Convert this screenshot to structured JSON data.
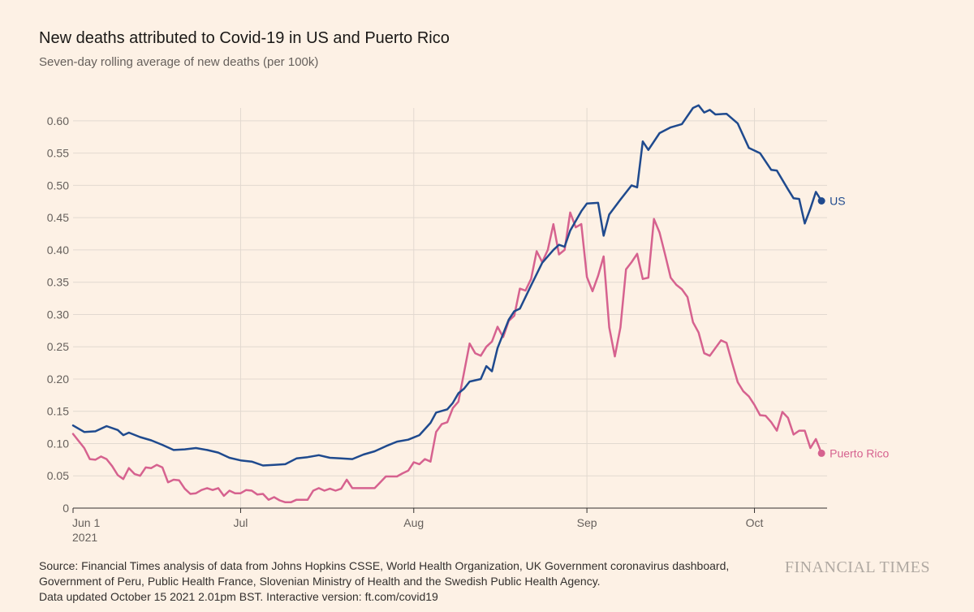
{
  "header": {
    "title": "New deaths attributed to Covid-19 in US and Puerto Rico",
    "subtitle": "Seven-day rolling average of new deaths (per 100k)"
  },
  "footer": {
    "source_lines": [
      "Source: Financial Times analysis of data from Johns Hopkins CSSE, World Health Organization, UK Government coronavirus dashboard,",
      "Government of Peru, Public Health France, Slovenian Ministry of Health and the Swedish Public Health Agency.",
      "Data updated October 15 2021 2.01pm BST. Interactive version: ft.com/covid19"
    ],
    "brand": "FINANCIAL TIMES"
  },
  "colors": {
    "background": "#fdf1e5",
    "us": "#1f4a8e",
    "puerto_rico": "#d6628f",
    "grid": "#e2d9d0",
    "axis": "#33302e"
  },
  "chart_data": {
    "type": "line",
    "title": "New deaths attributed to Covid-19 in US and Puerto Rico",
    "subtitle": "Seven-day rolling average of new deaths (per 100k)",
    "x_start": "2021-06-01",
    "x_end": "2021-10-14",
    "ylim": [
      0,
      0.62
    ],
    "yticks": [
      0,
      0.05,
      0.1,
      0.15,
      0.2,
      0.25,
      0.3,
      0.35,
      0.4,
      0.45,
      0.5,
      0.55,
      0.6
    ],
    "ytick_labels": [
      "0",
      "0.05",
      "0.10",
      "0.15",
      "0.20",
      "0.25",
      "0.30",
      "0.35",
      "0.40",
      "0.45",
      "0.50",
      "0.55",
      "0.60"
    ],
    "xticks": [
      {
        "date": "2021-06-01",
        "label": "Jun 1",
        "sublabel": "2021"
      },
      {
        "date": "2021-07-01",
        "label": "Jul",
        "sublabel": ""
      },
      {
        "date": "2021-08-01",
        "label": "Aug",
        "sublabel": ""
      },
      {
        "date": "2021-09-01",
        "label": "Sep",
        "sublabel": ""
      },
      {
        "date": "2021-10-01",
        "label": "Oct",
        "sublabel": ""
      }
    ],
    "grid": true,
    "legend": "end-of-line labels",
    "series": [
      {
        "name": "US",
        "color": "#1f4a8e",
        "points": [
          [
            "2021-06-01",
            0.128
          ],
          [
            "2021-06-03",
            0.118
          ],
          [
            "2021-06-05",
            0.119
          ],
          [
            "2021-06-07",
            0.127
          ],
          [
            "2021-06-09",
            0.121
          ],
          [
            "2021-06-10",
            0.113
          ],
          [
            "2021-06-11",
            0.117
          ],
          [
            "2021-06-13",
            0.11
          ],
          [
            "2021-06-15",
            0.105
          ],
          [
            "2021-06-17",
            0.098
          ],
          [
            "2021-06-19",
            0.09
          ],
          [
            "2021-06-21",
            0.091
          ],
          [
            "2021-06-23",
            0.093
          ],
          [
            "2021-06-25",
            0.09
          ],
          [
            "2021-06-27",
            0.086
          ],
          [
            "2021-06-29",
            0.078
          ],
          [
            "2021-07-01",
            0.074
          ],
          [
            "2021-07-03",
            0.072
          ],
          [
            "2021-07-05",
            0.066
          ],
          [
            "2021-07-07",
            0.067
          ],
          [
            "2021-07-09",
            0.068
          ],
          [
            "2021-07-11",
            0.077
          ],
          [
            "2021-07-13",
            0.079
          ],
          [
            "2021-07-15",
            0.082
          ],
          [
            "2021-07-17",
            0.078
          ],
          [
            "2021-07-19",
            0.077
          ],
          [
            "2021-07-21",
            0.076
          ],
          [
            "2021-07-23",
            0.083
          ],
          [
            "2021-07-25",
            0.088
          ],
          [
            "2021-07-27",
            0.096
          ],
          [
            "2021-07-29",
            0.103
          ],
          [
            "2021-07-31",
            0.106
          ],
          [
            "2021-08-02",
            0.113
          ],
          [
            "2021-08-04",
            0.132
          ],
          [
            "2021-08-05",
            0.148
          ],
          [
            "2021-08-07",
            0.153
          ],
          [
            "2021-08-08",
            0.163
          ],
          [
            "2021-08-09",
            0.178
          ],
          [
            "2021-08-10",
            0.185
          ],
          [
            "2021-08-11",
            0.196
          ],
          [
            "2021-08-13",
            0.2
          ],
          [
            "2021-08-14",
            0.22
          ],
          [
            "2021-08-15",
            0.212
          ],
          [
            "2021-08-16",
            0.248
          ],
          [
            "2021-08-18",
            0.292
          ],
          [
            "2021-08-19",
            0.305
          ],
          [
            "2021-08-20",
            0.309
          ],
          [
            "2021-08-22",
            0.345
          ],
          [
            "2021-08-24",
            0.38
          ],
          [
            "2021-08-26",
            0.4
          ],
          [
            "2021-08-27",
            0.408
          ],
          [
            "2021-08-28",
            0.405
          ],
          [
            "2021-08-29",
            0.43
          ],
          [
            "2021-08-31",
            0.46
          ],
          [
            "2021-09-01",
            0.472
          ],
          [
            "2021-09-03",
            0.473
          ],
          [
            "2021-09-04",
            0.422
          ],
          [
            "2021-09-05",
            0.455
          ],
          [
            "2021-09-07",
            0.478
          ],
          [
            "2021-09-09",
            0.5
          ],
          [
            "2021-09-10",
            0.497
          ],
          [
            "2021-09-11",
            0.568
          ],
          [
            "2021-09-12",
            0.555
          ],
          [
            "2021-09-14",
            0.581
          ],
          [
            "2021-09-16",
            0.59
          ],
          [
            "2021-09-18",
            0.595
          ],
          [
            "2021-09-20",
            0.62
          ],
          [
            "2021-09-21",
            0.624
          ],
          [
            "2021-09-22",
            0.613
          ],
          [
            "2021-09-23",
            0.617
          ],
          [
            "2021-09-24",
            0.61
          ],
          [
            "2021-09-26",
            0.611
          ],
          [
            "2021-09-28",
            0.596
          ],
          [
            "2021-09-30",
            0.558
          ],
          [
            "2021-10-02",
            0.55
          ],
          [
            "2021-10-04",
            0.524
          ],
          [
            "2021-10-05",
            0.523
          ],
          [
            "2021-10-07",
            0.494
          ],
          [
            "2021-10-08",
            0.48
          ],
          [
            "2021-10-09",
            0.479
          ],
          [
            "2021-10-10",
            0.441
          ],
          [
            "2021-10-11",
            0.464
          ],
          [
            "2021-10-12",
            0.49
          ],
          [
            "2021-10-13",
            0.476
          ]
        ]
      },
      {
        "name": "Puerto Rico",
        "color": "#d6628f",
        "points": [
          [
            "2021-06-01",
            0.115
          ],
          [
            "2021-06-03",
            0.093
          ],
          [
            "2021-06-04",
            0.076
          ],
          [
            "2021-06-05",
            0.075
          ],
          [
            "2021-06-06",
            0.08
          ],
          [
            "2021-06-07",
            0.076
          ],
          [
            "2021-06-08",
            0.065
          ],
          [
            "2021-06-09",
            0.051
          ],
          [
            "2021-06-10",
            0.045
          ],
          [
            "2021-06-11",
            0.062
          ],
          [
            "2021-06-12",
            0.053
          ],
          [
            "2021-06-13",
            0.05
          ],
          [
            "2021-06-14",
            0.063
          ],
          [
            "2021-06-15",
            0.062
          ],
          [
            "2021-06-16",
            0.067
          ],
          [
            "2021-06-17",
            0.063
          ],
          [
            "2021-06-18",
            0.04
          ],
          [
            "2021-06-19",
            0.044
          ],
          [
            "2021-06-20",
            0.043
          ],
          [
            "2021-06-21",
            0.03
          ],
          [
            "2021-06-22",
            0.022
          ],
          [
            "2021-06-23",
            0.023
          ],
          [
            "2021-06-24",
            0.028
          ],
          [
            "2021-06-25",
            0.031
          ],
          [
            "2021-06-26",
            0.028
          ],
          [
            "2021-06-27",
            0.031
          ],
          [
            "2021-06-28",
            0.019
          ],
          [
            "2021-06-29",
            0.027
          ],
          [
            "2021-06-30",
            0.023
          ],
          [
            "2021-07-01",
            0.023
          ],
          [
            "2021-07-02",
            0.028
          ],
          [
            "2021-07-03",
            0.027
          ],
          [
            "2021-07-04",
            0.021
          ],
          [
            "2021-07-05",
            0.022
          ],
          [
            "2021-07-06",
            0.013
          ],
          [
            "2021-07-07",
            0.017
          ],
          [
            "2021-07-08",
            0.012
          ],
          [
            "2021-07-09",
            0.009
          ],
          [
            "2021-07-10",
            0.009
          ],
          [
            "2021-07-11",
            0.013
          ],
          [
            "2021-07-13",
            0.013
          ],
          [
            "2021-07-14",
            0.027
          ],
          [
            "2021-07-15",
            0.031
          ],
          [
            "2021-07-16",
            0.027
          ],
          [
            "2021-07-17",
            0.03
          ],
          [
            "2021-07-18",
            0.027
          ],
          [
            "2021-07-19",
            0.03
          ],
          [
            "2021-07-20",
            0.044
          ],
          [
            "2021-07-21",
            0.031
          ],
          [
            "2021-07-23",
            0.031
          ],
          [
            "2021-07-25",
            0.031
          ],
          [
            "2021-07-26",
            0.04
          ],
          [
            "2021-07-27",
            0.049
          ],
          [
            "2021-07-29",
            0.049
          ],
          [
            "2021-07-30",
            0.054
          ],
          [
            "2021-07-31",
            0.058
          ],
          [
            "2021-08-01",
            0.071
          ],
          [
            "2021-08-02",
            0.068
          ],
          [
            "2021-08-03",
            0.076
          ],
          [
            "2021-08-04",
            0.072
          ],
          [
            "2021-08-05",
            0.118
          ],
          [
            "2021-08-06",
            0.13
          ],
          [
            "2021-08-07",
            0.133
          ],
          [
            "2021-08-08",
            0.155
          ],
          [
            "2021-08-09",
            0.165
          ],
          [
            "2021-08-10",
            0.21
          ],
          [
            "2021-08-11",
            0.255
          ],
          [
            "2021-08-12",
            0.24
          ],
          [
            "2021-08-13",
            0.236
          ],
          [
            "2021-08-14",
            0.25
          ],
          [
            "2021-08-15",
            0.258
          ],
          [
            "2021-08-16",
            0.281
          ],
          [
            "2021-08-17",
            0.265
          ],
          [
            "2021-08-18",
            0.29
          ],
          [
            "2021-08-19",
            0.298
          ],
          [
            "2021-08-20",
            0.34
          ],
          [
            "2021-08-21",
            0.337
          ],
          [
            "2021-08-22",
            0.355
          ],
          [
            "2021-08-23",
            0.398
          ],
          [
            "2021-08-24",
            0.381
          ],
          [
            "2021-08-25",
            0.4
          ],
          [
            "2021-08-26",
            0.44
          ],
          [
            "2021-08-27",
            0.393
          ],
          [
            "2021-08-28",
            0.4
          ],
          [
            "2021-08-29",
            0.458
          ],
          [
            "2021-08-30",
            0.435
          ],
          [
            "2021-08-31",
            0.44
          ],
          [
            "2021-09-01",
            0.358
          ],
          [
            "2021-09-02",
            0.336
          ],
          [
            "2021-09-03",
            0.36
          ],
          [
            "2021-09-04",
            0.39
          ],
          [
            "2021-09-05",
            0.28
          ],
          [
            "2021-09-06",
            0.235
          ],
          [
            "2021-09-07",
            0.28
          ],
          [
            "2021-09-08",
            0.37
          ],
          [
            "2021-09-09",
            0.381
          ],
          [
            "2021-09-10",
            0.394
          ],
          [
            "2021-09-11",
            0.355
          ],
          [
            "2021-09-12",
            0.357
          ],
          [
            "2021-09-13",
            0.448
          ],
          [
            "2021-09-14",
            0.427
          ],
          [
            "2021-09-15",
            0.393
          ],
          [
            "2021-09-16",
            0.357
          ],
          [
            "2021-09-17",
            0.346
          ],
          [
            "2021-09-18",
            0.339
          ],
          [
            "2021-09-19",
            0.327
          ],
          [
            "2021-09-20",
            0.288
          ],
          [
            "2021-09-21",
            0.272
          ],
          [
            "2021-09-22",
            0.24
          ],
          [
            "2021-09-23",
            0.236
          ],
          [
            "2021-09-25",
            0.26
          ],
          [
            "2021-09-26",
            0.256
          ],
          [
            "2021-09-27",
            0.225
          ],
          [
            "2021-09-28",
            0.195
          ],
          [
            "2021-09-29",
            0.181
          ],
          [
            "2021-09-30",
            0.173
          ],
          [
            "2021-10-01",
            0.16
          ],
          [
            "2021-10-02",
            0.144
          ],
          [
            "2021-10-03",
            0.143
          ],
          [
            "2021-10-04",
            0.133
          ],
          [
            "2021-10-05",
            0.12
          ],
          [
            "2021-10-06",
            0.149
          ],
          [
            "2021-10-07",
            0.14
          ],
          [
            "2021-10-08",
            0.114
          ],
          [
            "2021-10-09",
            0.12
          ],
          [
            "2021-10-10",
            0.12
          ],
          [
            "2021-10-11",
            0.093
          ],
          [
            "2021-10-12",
            0.107
          ],
          [
            "2021-10-13",
            0.085
          ]
        ]
      }
    ]
  }
}
